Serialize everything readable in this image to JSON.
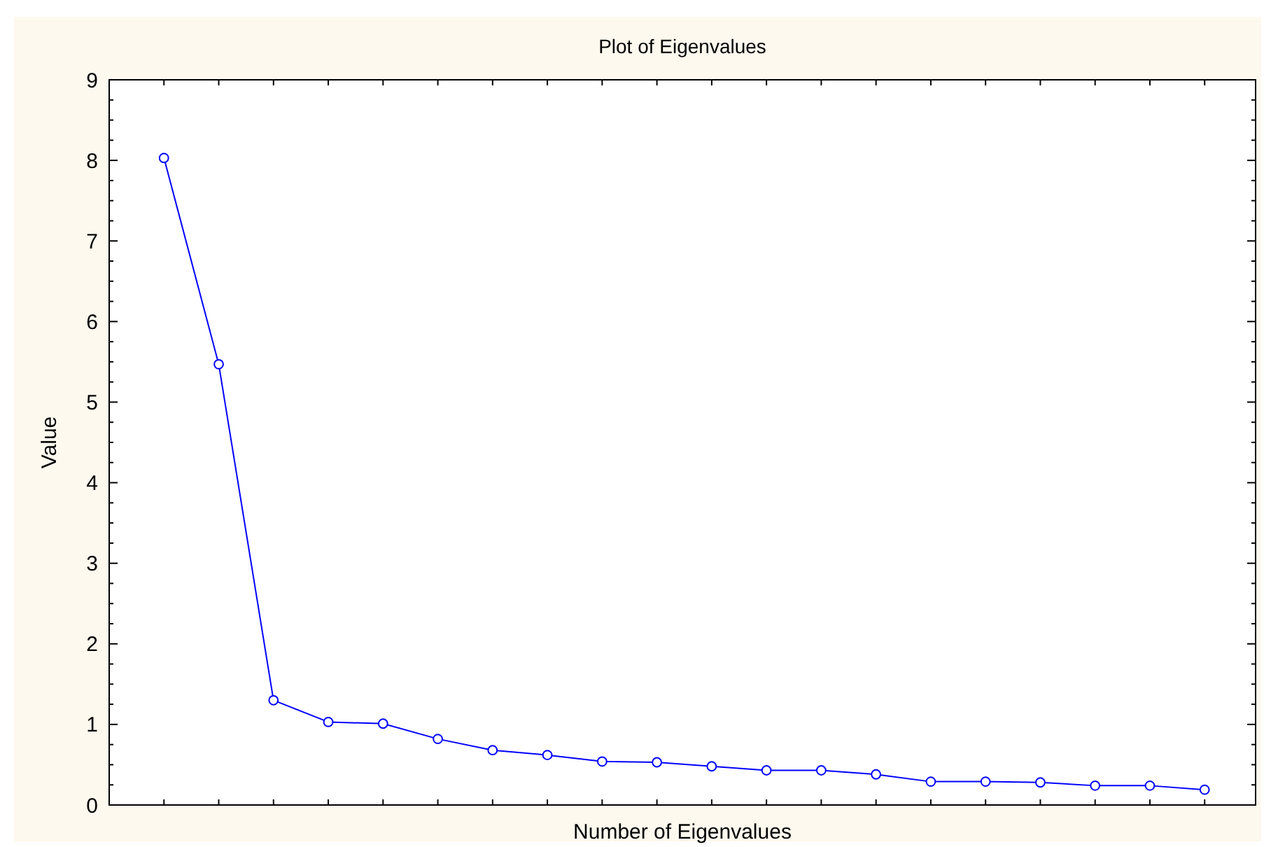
{
  "chart_data": {
    "type": "line",
    "title": "Plot of Eigenvalues",
    "xlabel": "Number of Eigenvalues",
    "ylabel": "Value",
    "categories": [
      null,
      null,
      null,
      null,
      null,
      null,
      null,
      null,
      null,
      null,
      null,
      null,
      null,
      null,
      null,
      null,
      null,
      null,
      null,
      null
    ],
    "series": [
      {
        "color": "#0000ff",
        "values": [
          8.03,
          5.47,
          1.3,
          1.03,
          1.01,
          0.82,
          0.68,
          0.62,
          0.54,
          0.53,
          0.48,
          0.43,
          0.43,
          0.38,
          0.29,
          0.29,
          0.28,
          0.24,
          0.24,
          0.19
        ]
      }
    ],
    "ylim": [
      0,
      9
    ],
    "yticks": [
      0,
      1,
      2,
      3,
      4,
      5,
      6,
      7,
      8,
      9
    ],
    "grid": false,
    "marker": "circle",
    "line_style": "solid"
  }
}
